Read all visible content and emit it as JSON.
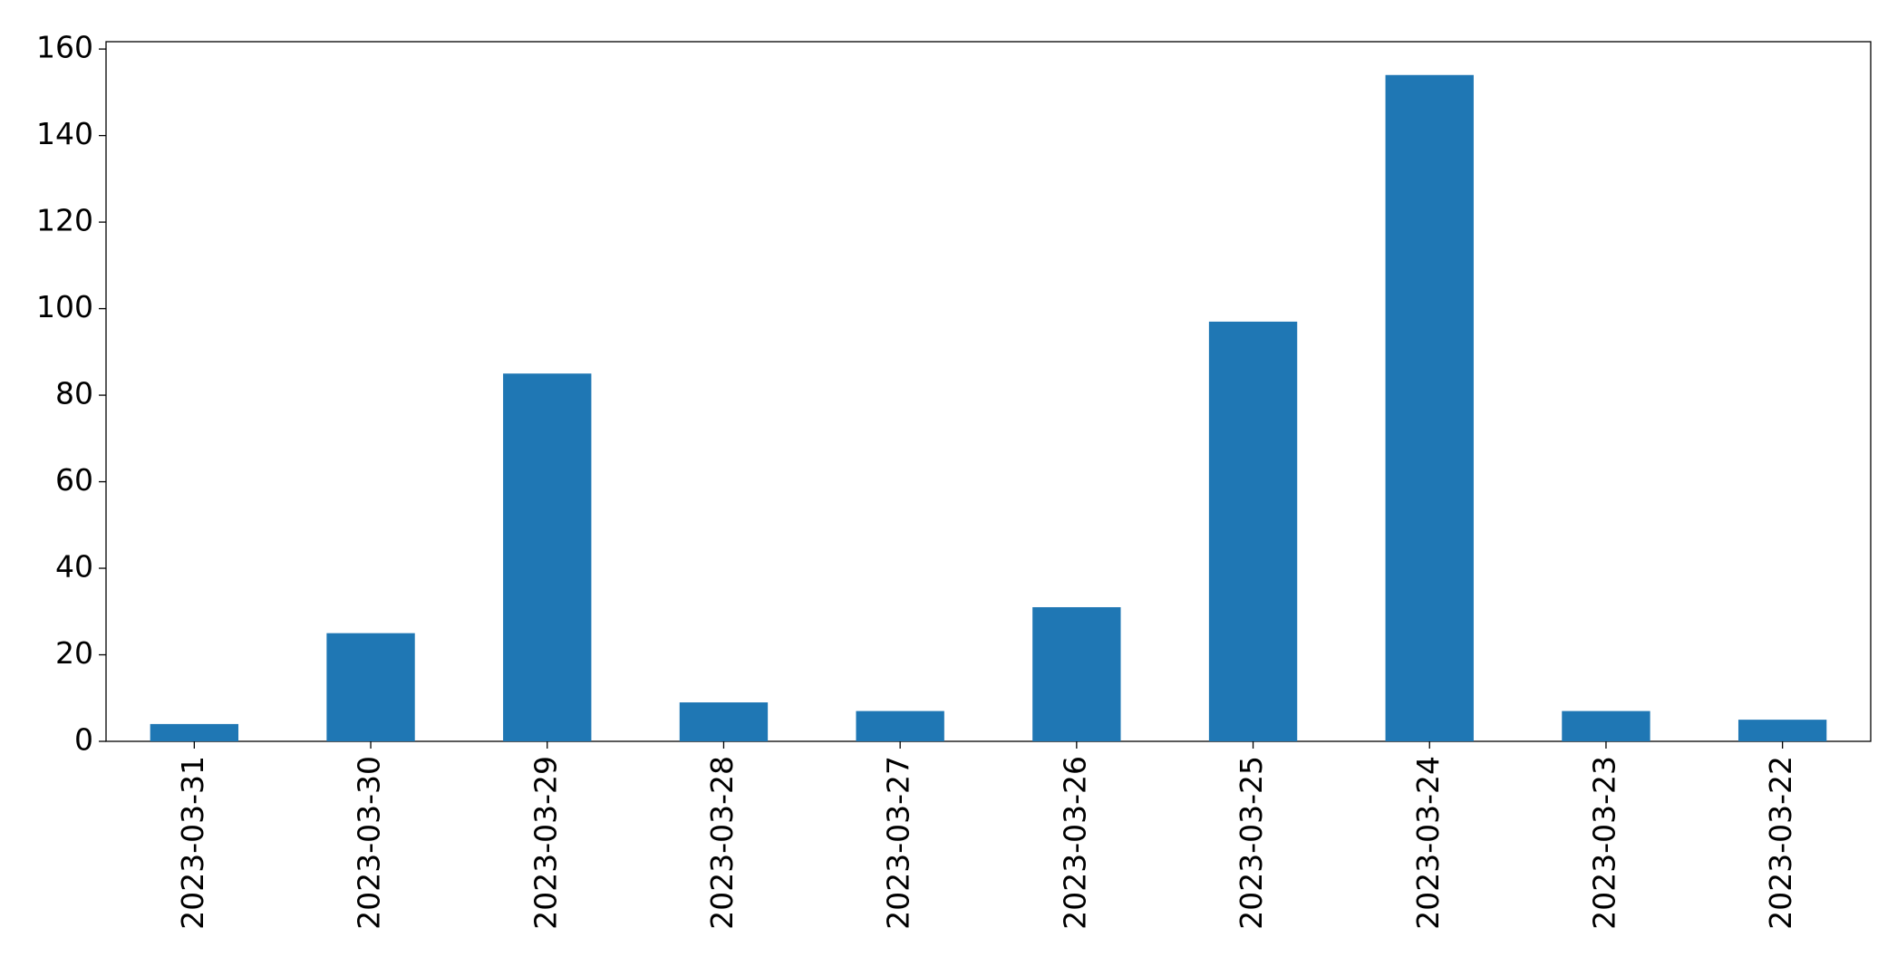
{
  "chart_data": {
    "type": "bar",
    "categories": [
      "2023-03-31",
      "2023-03-30",
      "2023-03-29",
      "2023-03-28",
      "2023-03-27",
      "2023-03-26",
      "2023-03-25",
      "2023-03-24",
      "2023-03-23",
      "2023-03-22"
    ],
    "values": [
      4,
      25,
      85,
      9,
      7,
      31,
      97,
      154,
      7,
      5
    ],
    "color": "#1f77b4",
    "ylim": [
      0,
      161.7
    ],
    "yticks": [
      0,
      20,
      40,
      60,
      80,
      100,
      120,
      140,
      160
    ],
    "grid": false
  }
}
